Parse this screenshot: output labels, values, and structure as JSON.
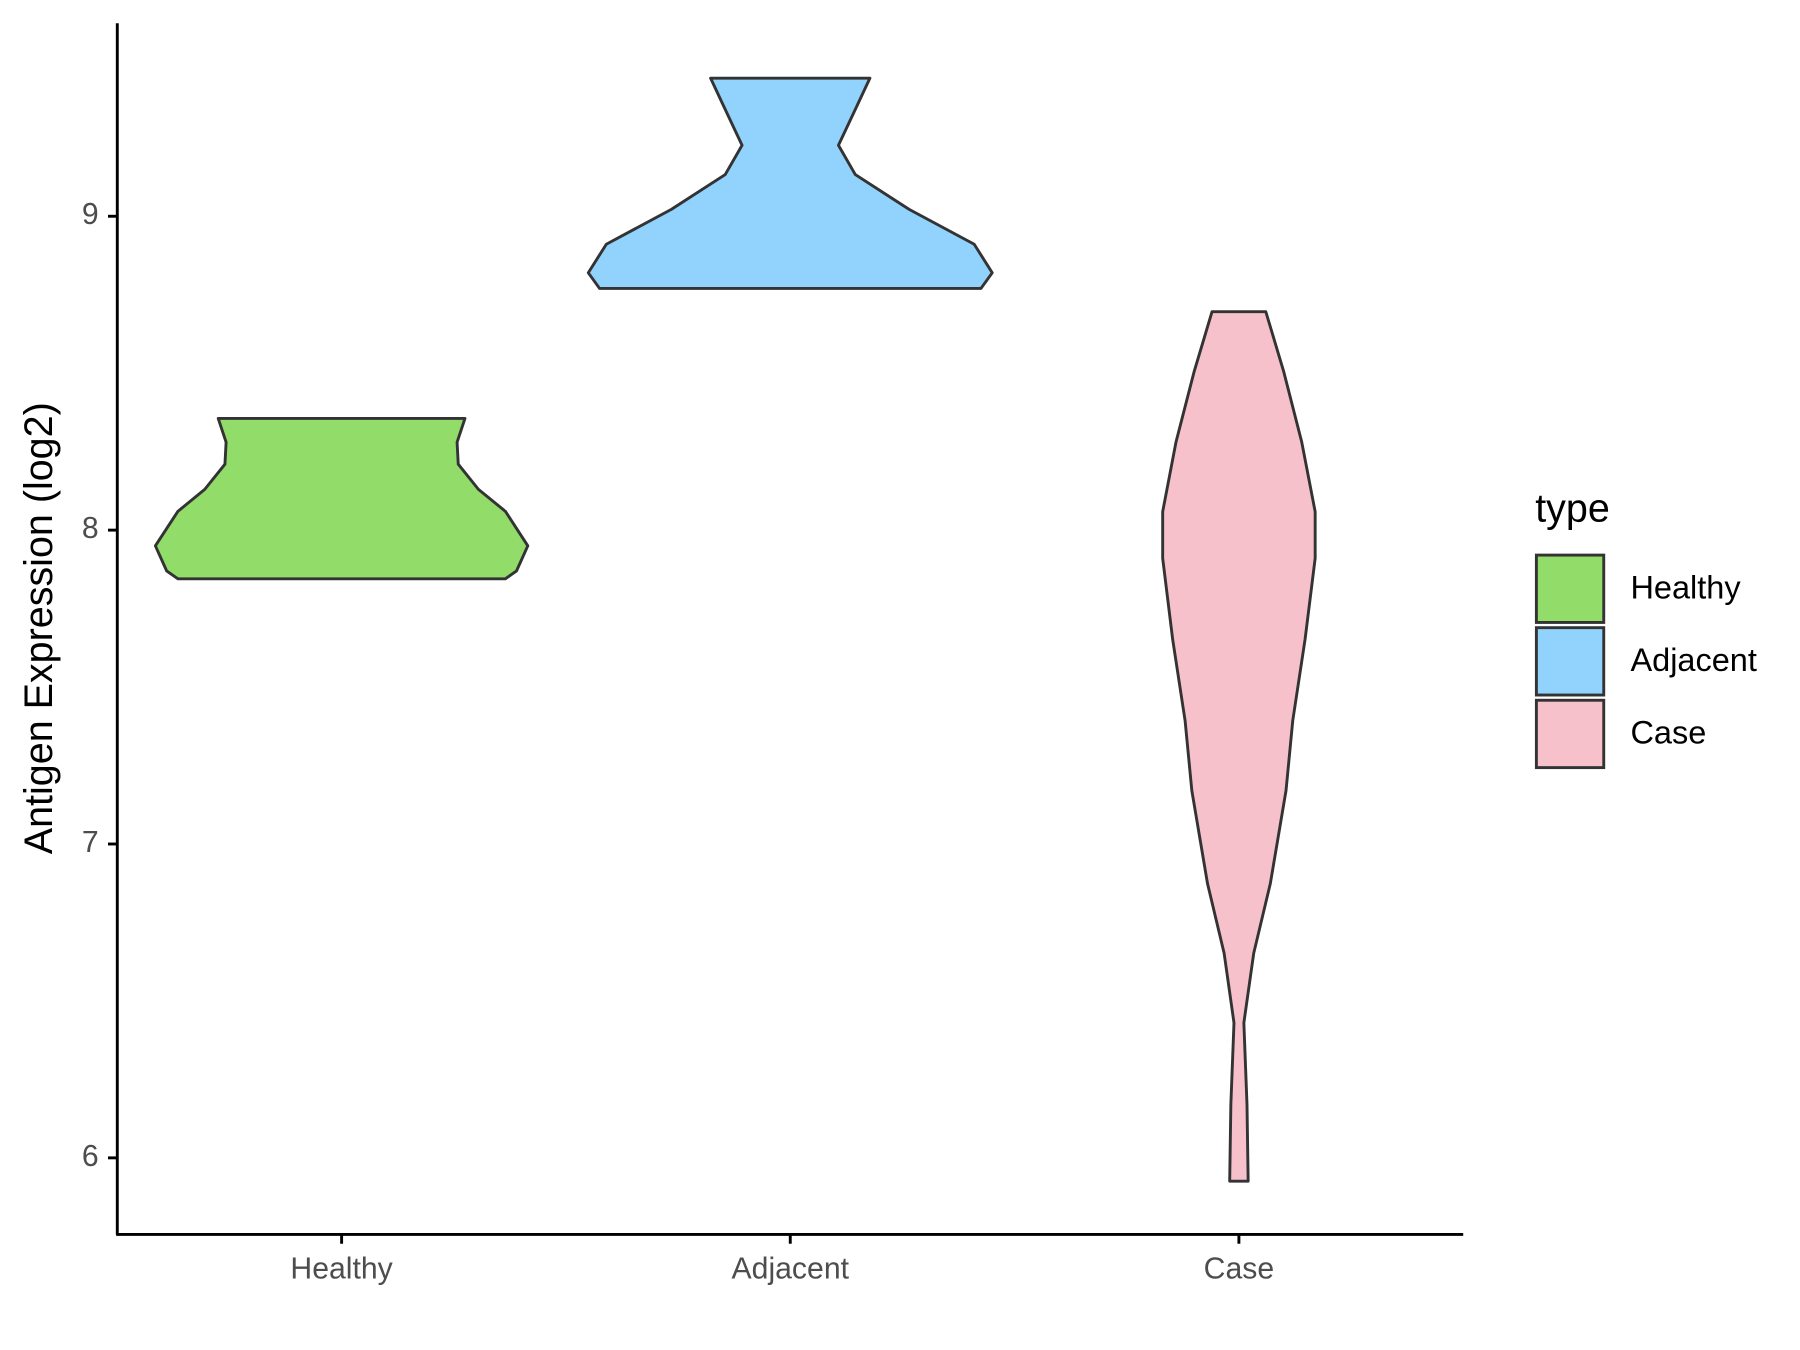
{
  "chart_data": {
    "type": "violin",
    "y_label": "Antigen Expression (log2)",
    "categories": [
      "Healthy",
      "Adjacent",
      "Case"
    ],
    "ylim": [
      5.756,
      9.615
    ],
    "yticks": [
      6,
      7,
      8,
      9
    ],
    "legend_title": "type",
    "legend_position": "right",
    "series": [
      {
        "name": "Healthy",
        "color": "#92dc6a",
        "y": [
          8.356,
          8.28,
          8.21,
          8.13,
          8.06,
          7.95,
          7.87,
          7.845
        ],
        "widths": [
          0.55,
          0.515,
          0.52,
          0.61,
          0.73,
          0.83,
          0.78,
          0.73
        ]
      },
      {
        "name": "Adjacent",
        "color": "#92d3fe",
        "y": [
          9.44,
          9.356,
          9.226,
          9.133,
          9.022,
          8.911,
          8.82,
          8.77
        ],
        "widths": [
          0.355,
          0.3,
          0.215,
          0.29,
          0.53,
          0.82,
          0.9,
          0.85
        ]
      },
      {
        "name": "Case",
        "color": "#f7c1cc",
        "y": [
          8.696,
          8.504,
          8.281,
          8.059,
          7.91,
          7.652,
          7.393,
          7.17,
          6.874,
          6.652,
          6.43,
          6.17,
          5.926
        ],
        "widths": [
          0.12,
          0.2,
          0.28,
          0.34,
          0.34,
          0.295,
          0.24,
          0.21,
          0.14,
          0.066,
          0.022,
          0.036,
          0.041
        ]
      }
    ]
  }
}
